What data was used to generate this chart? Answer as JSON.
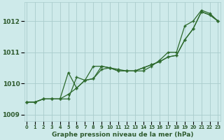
{
  "xlabel": "Graphe pression niveau de la mer (hPa)",
  "hours": [
    0,
    1,
    2,
    3,
    4,
    5,
    6,
    7,
    8,
    9,
    10,
    11,
    12,
    13,
    14,
    15,
    16,
    17,
    18,
    19,
    20,
    21,
    22,
    23
  ],
  "line1": [
    1009.4,
    1009.4,
    1009.5,
    1009.5,
    1009.5,
    1009.5,
    1010.2,
    1010.1,
    1010.55,
    1010.55,
    1010.5,
    1010.45,
    1010.4,
    1010.4,
    1010.4,
    1010.55,
    1010.75,
    1011.0,
    1011.0,
    1011.85,
    1012.0,
    1012.35,
    1012.25,
    1012.0
  ],
  "line2": [
    1009.4,
    1009.4,
    1009.5,
    1009.5,
    1009.5,
    1009.65,
    1009.85,
    1010.1,
    1010.15,
    1010.55,
    1010.5,
    1010.4,
    1010.4,
    1010.4,
    1010.5,
    1010.6,
    1010.7,
    1010.85,
    1010.9,
    1011.4,
    1011.75,
    1012.3,
    1012.2,
    1012.0
  ],
  "line3": [
    1009.4,
    1009.4,
    1009.5,
    1009.5,
    1009.5,
    1010.35,
    1009.85,
    1010.1,
    1010.15,
    1010.45,
    1010.5,
    1010.4,
    1010.4,
    1010.4,
    1010.5,
    1010.6,
    1010.7,
    1010.85,
    1010.9,
    1011.4,
    1011.75,
    1012.3,
    1012.2,
    1012.0
  ],
  "line_color": "#2d6a2d",
  "marker": "+",
  "bg_color": "#ceeaea",
  "grid_color": "#aacccc",
  "text_color": "#2d5a2d",
  "ylim": [
    1008.8,
    1012.6
  ],
  "yticks": [
    1009,
    1010,
    1011,
    1012
  ],
  "xlim": [
    -0.3,
    23.3
  ],
  "figsize": [
    3.2,
    2.0
  ],
  "dpi": 100
}
